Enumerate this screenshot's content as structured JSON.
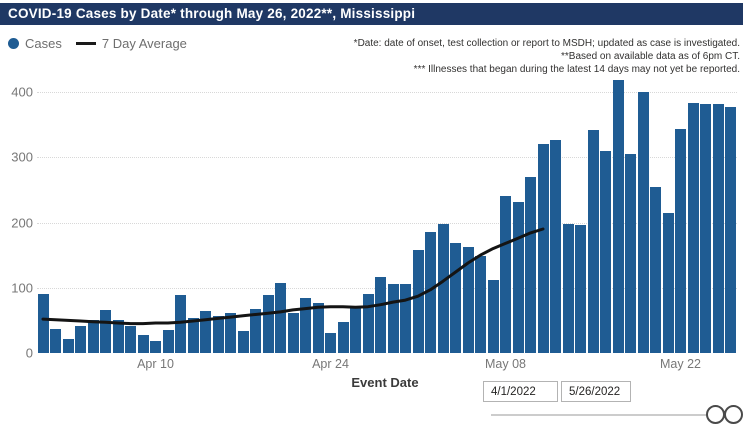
{
  "title": "COVID-19 Cases by Date* through May 26, 2022**, Mississippi",
  "legend": {
    "cases_label": "Cases",
    "avg_label": "7 Day Average"
  },
  "annotations": [
    "*Date: date of onset, test collection or report to MSDH; updated as case is investigated.",
    "**Based on available data as of 6pm CT.",
    "*** Illnesses that began during the latest 14 days may not yet be reported."
  ],
  "xlabel": "Event Date",
  "slicer": {
    "start_value": "4/1/2022",
    "end_value": "5/26/2022"
  },
  "colors": {
    "title_bg": "#1F3864",
    "title_text": "#FFFFFF",
    "bar": "#1F5C93",
    "avg_line": "#141414",
    "axis_text": "#777777",
    "annotation_text": "#323130",
    "gridline": "#D8D8D8"
  },
  "chart_data": {
    "type": "bar",
    "title": "COVID-19 Cases by Date* through May 26, 2022**, Mississippi",
    "xlabel": "Event Date",
    "ylabel": "",
    "ylim": [
      0,
      440
    ],
    "yticks": [
      0,
      100,
      200,
      300,
      400
    ],
    "grid": "dotted-horizontal",
    "legend_position": "top-left",
    "x_tick_labels": [
      {
        "label": "Apr 10",
        "index": 9
      },
      {
        "label": "Apr 24",
        "index": 23
      },
      {
        "label": "May 08",
        "index": 37
      },
      {
        "label": "May 22",
        "index": 51
      }
    ],
    "categories": [
      "Apr 1",
      "Apr 2",
      "Apr 3",
      "Apr 4",
      "Apr 5",
      "Apr 6",
      "Apr 7",
      "Apr 8",
      "Apr 9",
      "Apr 10",
      "Apr 11",
      "Apr 12",
      "Apr 13",
      "Apr 14",
      "Apr 15",
      "Apr 16",
      "Apr 17",
      "Apr 18",
      "Apr 19",
      "Apr 20",
      "Apr 21",
      "Apr 22",
      "Apr 23",
      "Apr 24",
      "Apr 25",
      "Apr 26",
      "Apr 27",
      "Apr 28",
      "Apr 29",
      "Apr 30",
      "May 1",
      "May 2",
      "May 3",
      "May 4",
      "May 5",
      "May 6",
      "May 7",
      "May 8",
      "May 9",
      "May 10",
      "May 11",
      "May 12",
      "May 13",
      "May 14",
      "May 15",
      "May 16",
      "May 17",
      "May 18",
      "May 19",
      "May 20",
      "May 21",
      "May 22",
      "May 23",
      "May 24",
      "May 25",
      "May 26"
    ],
    "series": [
      {
        "name": "Cases",
        "type": "bar",
        "values": [
          90,
          37,
          21,
          41,
          50,
          66,
          50,
          42,
          27,
          19,
          35,
          89,
          53,
          65,
          57,
          62,
          34,
          67,
          89,
          107,
          62,
          84,
          77,
          30,
          47,
          69,
          90,
          116,
          105,
          106,
          158,
          186,
          198,
          169,
          163,
          148,
          112,
          240,
          231,
          270,
          320,
          327,
          197,
          196,
          341,
          309,
          418,
          305,
          400,
          254,
          214,
          344,
          383,
          381,
          381,
          377
        ]
      },
      {
        "name": "7 Day Average",
        "type": "line",
        "note": "line ends around May 11 because latest days are incomplete",
        "values": [
          52,
          51,
          50,
          49,
          48,
          47,
          46,
          45,
          45,
          46,
          46,
          47,
          49,
          51,
          53,
          55,
          57,
          59,
          61,
          63,
          66,
          68,
          70,
          71,
          71,
          70,
          71,
          74,
          78,
          81,
          87,
          97,
          110,
          124,
          138,
          150,
          160,
          168,
          176,
          184,
          190
        ]
      }
    ]
  }
}
